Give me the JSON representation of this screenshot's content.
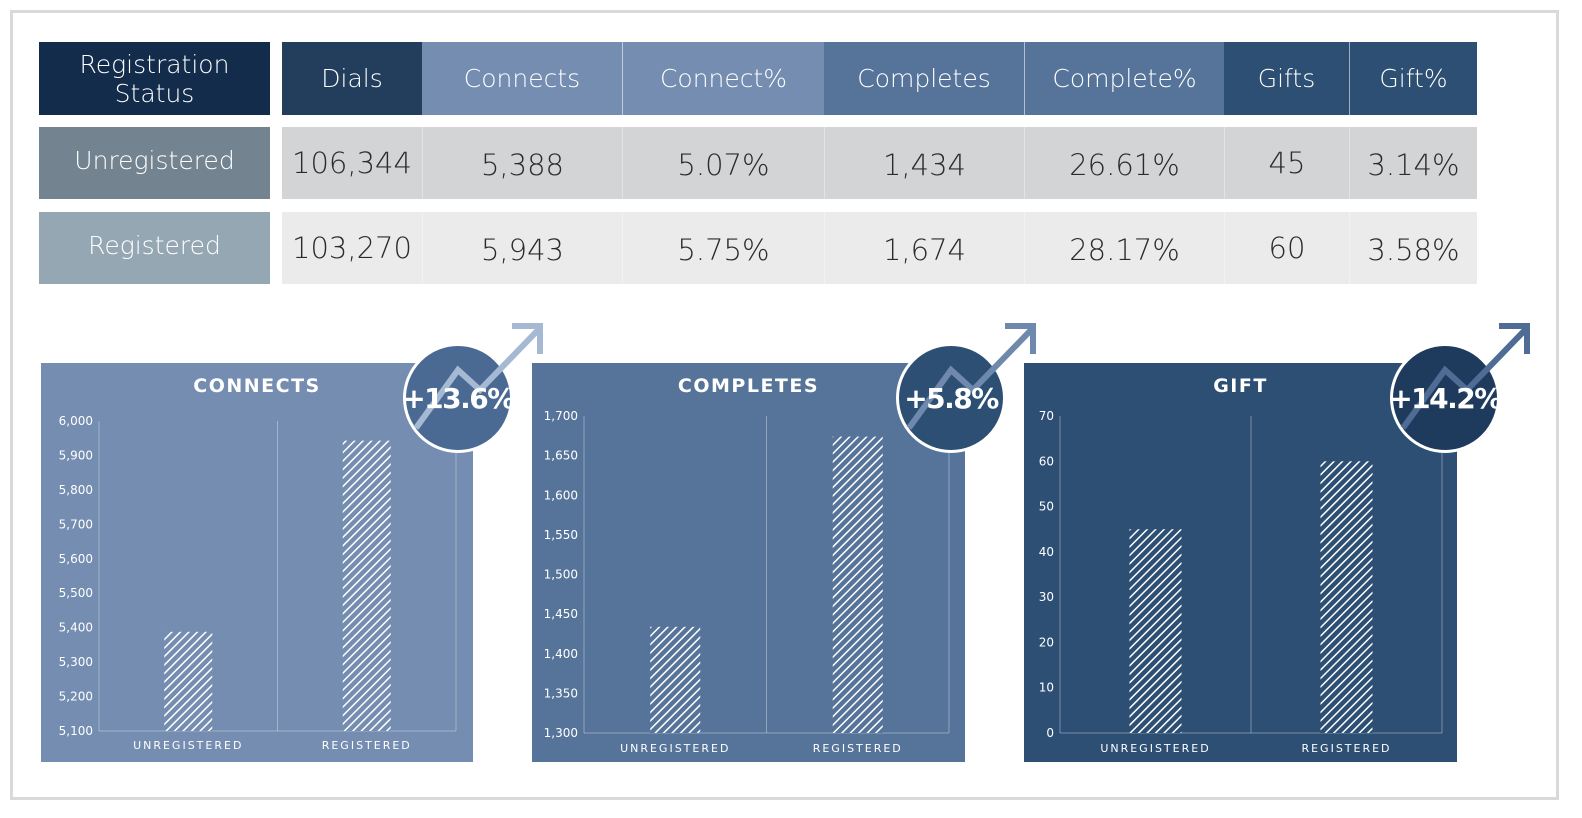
{
  "table": {
    "header": {
      "status": "Registration Status",
      "columns": [
        "Dials",
        "Connects",
        "Connect%",
        "Completes",
        "Complete%",
        "Gifts",
        "Gift%"
      ]
    },
    "rows": [
      {
        "label": "Unregistered",
        "values": [
          "106,344",
          "5,388",
          "5.07%",
          "1,434",
          "26.61%",
          "45",
          "3.14%"
        ]
      },
      {
        "label": "Registered",
        "values": [
          "103,270",
          "5,943",
          "5.75%",
          "1,674",
          "28.17%",
          "60",
          "3.58%"
        ]
      }
    ],
    "colors": {
      "status_header": "#142c4c",
      "dials_header": "#233d5c",
      "connects_header": "#748db0",
      "completes_header": "#56749a",
      "gifts_header": "#2d4f73",
      "unregistered_label": "#738390",
      "registered_label": "#96a7b4",
      "row1_bg": "#d3d4d6",
      "row2_bg": "#ebebeb"
    }
  },
  "badges": [
    {
      "label": "+13.6%",
      "color": "#4a6a94",
      "arrow_color": "#a5b9d3",
      "icon": "trend-up-arrow-icon"
    },
    {
      "label": "+5.8%",
      "color": "#2d4f73",
      "arrow_color": "#6f89ad",
      "icon": "trend-up-arrow-icon"
    },
    {
      "label": "+14.2%",
      "color": "#1e3a5c",
      "arrow_color": "#4f6d94",
      "icon": "trend-up-arrow-icon"
    }
  ],
  "chart_data": [
    {
      "type": "bar",
      "title": "CONNECTS",
      "categories": [
        "UNREGISTERED",
        "REGISTERED"
      ],
      "values": [
        5388,
        5943
      ],
      "ylim": [
        5100,
        6000
      ],
      "yticks": [
        5100,
        5200,
        5300,
        5400,
        5500,
        5600,
        5700,
        5800,
        5900,
        6000
      ],
      "ytick_labels": [
        "5,100",
        "5,200",
        "5,300",
        "5,400",
        "5,500",
        "5,600",
        "5,700",
        "5,800",
        "5,900",
        "6,000"
      ],
      "bg_color": "#748db0"
    },
    {
      "type": "bar",
      "title": "COMPLETES",
      "categories": [
        "UNREGISTERED",
        "REGISTERED"
      ],
      "values": [
        1434,
        1674
      ],
      "ylim": [
        1300,
        1700
      ],
      "yticks": [
        1300,
        1350,
        1400,
        1450,
        1500,
        1550,
        1600,
        1650,
        1700
      ],
      "ytick_labels": [
        "1,300",
        "1,350",
        "1,400",
        "1,450",
        "1,500",
        "1,550",
        "1,600",
        "1,650",
        "1,700"
      ],
      "bg_color": "#56749a"
    },
    {
      "type": "bar",
      "title": "GIFT",
      "categories": [
        "UNREGISTERED",
        "REGISTERED"
      ],
      "values": [
        45,
        60
      ],
      "ylim": [
        0,
        70
      ],
      "yticks": [
        0,
        10,
        20,
        30,
        40,
        50,
        60,
        70
      ],
      "ytick_labels": [
        "0",
        "10",
        "20",
        "30",
        "40",
        "50",
        "60",
        "70"
      ],
      "bg_color": "#2d4f73"
    }
  ]
}
